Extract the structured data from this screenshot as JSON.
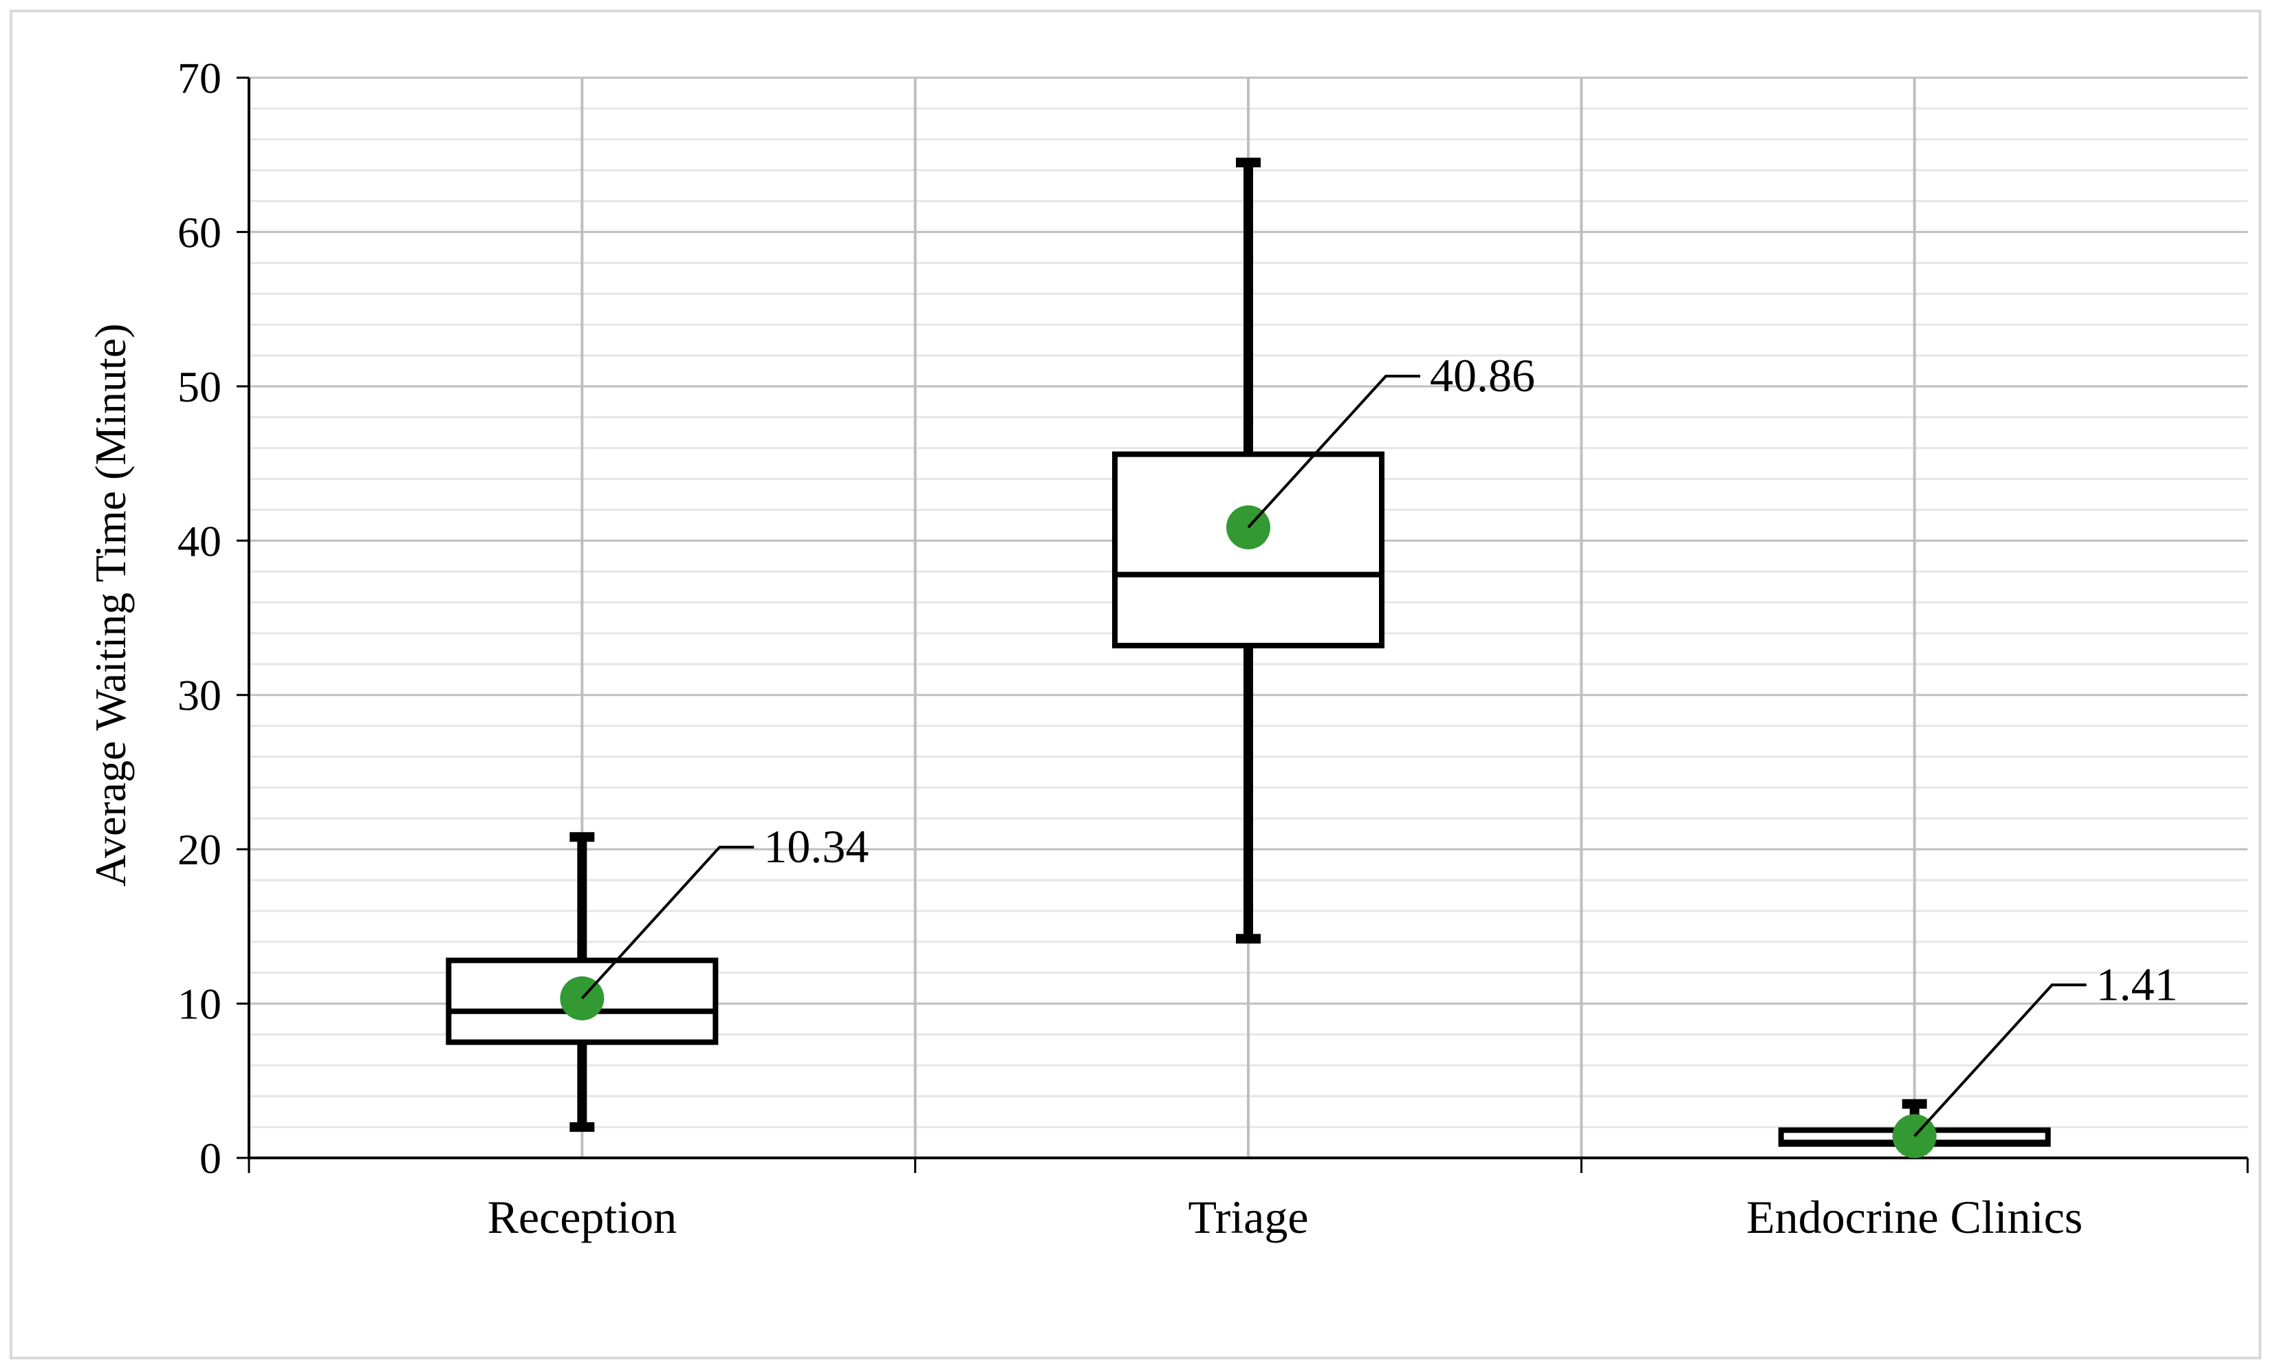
{
  "chart_data": {
    "type": "box",
    "title": "",
    "xlabel": "",
    "ylabel": "Average Waiting Time (Minute)",
    "ylim": [
      0,
      70
    ],
    "y_major_step": 10,
    "y_minor_step": 2,
    "yticks": [
      "0",
      "10",
      "20",
      "30",
      "40",
      "50",
      "60",
      "70"
    ],
    "grid": true,
    "legend": "none",
    "categories": [
      "Reception",
      "Triage",
      "Endocrine Clinics"
    ],
    "boxes": [
      {
        "category": "Reception",
        "min": 2.0,
        "q1": 7.5,
        "median": 9.5,
        "q3": 12.8,
        "max": 20.8,
        "mean": 10.34,
        "mean_label": "10.34"
      },
      {
        "category": "Triage",
        "min": 14.2,
        "q1": 33.2,
        "median": 37.8,
        "q3": 45.6,
        "max": 64.5,
        "mean": 40.86,
        "mean_label": "40.86"
      },
      {
        "category": "Endocrine Clinics",
        "min": 0.5,
        "q1": 0.9,
        "median": 1.0,
        "q3": 1.8,
        "max": 3.5,
        "mean": 1.41,
        "mean_label": "1.41"
      }
    ],
    "colors": {
      "box": "#000000",
      "mean_marker": "#339933",
      "major_grid": "#bfbfbf",
      "minor_grid": "#e6e6e6",
      "frame": "#d9d9d9"
    }
  }
}
